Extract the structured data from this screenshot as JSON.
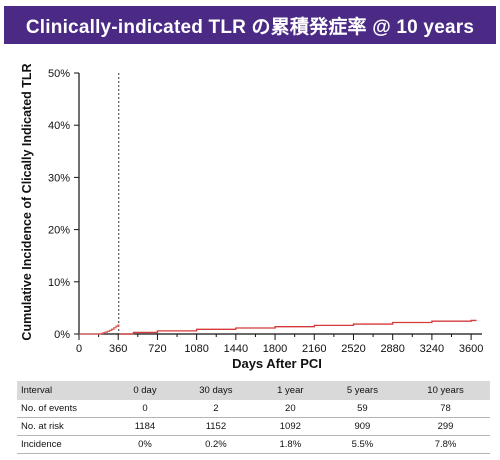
{
  "header": {
    "title": "Clinically-indicated TLR の累積発症率 @ 10 years"
  },
  "chart_data": {
    "type": "line",
    "ylabel": "Cumulative Incidence of Clically Indicated TLR",
    "xlabel": "Days After PCI",
    "xlim": [
      0,
      3700
    ],
    "ylim": [
      0,
      50
    ],
    "x_ticks": [
      0,
      360,
      720,
      1080,
      1440,
      1800,
      2160,
      2520,
      2880,
      3240,
      3600
    ],
    "x_tick_labels": [
      "0",
      "360",
      "720",
      "1080",
      "1440",
      "1800",
      "2160",
      "2520",
      "2880",
      "3240",
      "3600"
    ],
    "y_ticks": [
      0,
      10,
      20,
      30,
      40,
      50
    ],
    "y_tick_labels": [
      "0%",
      "10%",
      "20%",
      "30%",
      "40%",
      "50%"
    ],
    "landmark_x": 365,
    "grid": false,
    "series_colors": [
      "#e05a5a",
      "#d53a3a"
    ],
    "series": [
      {
        "x": [
          0,
          200,
          220,
          240,
          260,
          280,
          300,
          320,
          340,
          360,
          365
        ],
        "y": [
          0,
          0.1,
          0.2,
          0.35,
          0.5,
          0.7,
          0.9,
          1.2,
          1.5,
          1.75,
          1.8
        ]
      },
      {
        "x": [
          365,
          500,
          720,
          1080,
          1440,
          1800,
          2160,
          2520,
          2880,
          3240,
          3600,
          3650
        ],
        "y": [
          0,
          0.3,
          0.6,
          0.9,
          1.15,
          1.4,
          1.65,
          1.9,
          2.2,
          2.45,
          2.6,
          2.6
        ]
      }
    ]
  },
  "table": {
    "headers": [
      "Interval",
      "0 day",
      "30 days",
      "1 year",
      "5 years",
      "10 years"
    ],
    "rows": [
      [
        "No. of events",
        "0",
        "2",
        "20",
        "59",
        "78"
      ],
      [
        "No. at risk",
        "1184",
        "1152",
        "1092",
        "909",
        "299"
      ],
      [
        "Incidence",
        "0%",
        "0.2%",
        "1.8%",
        "5.5%",
        "7.8%"
      ]
    ]
  }
}
